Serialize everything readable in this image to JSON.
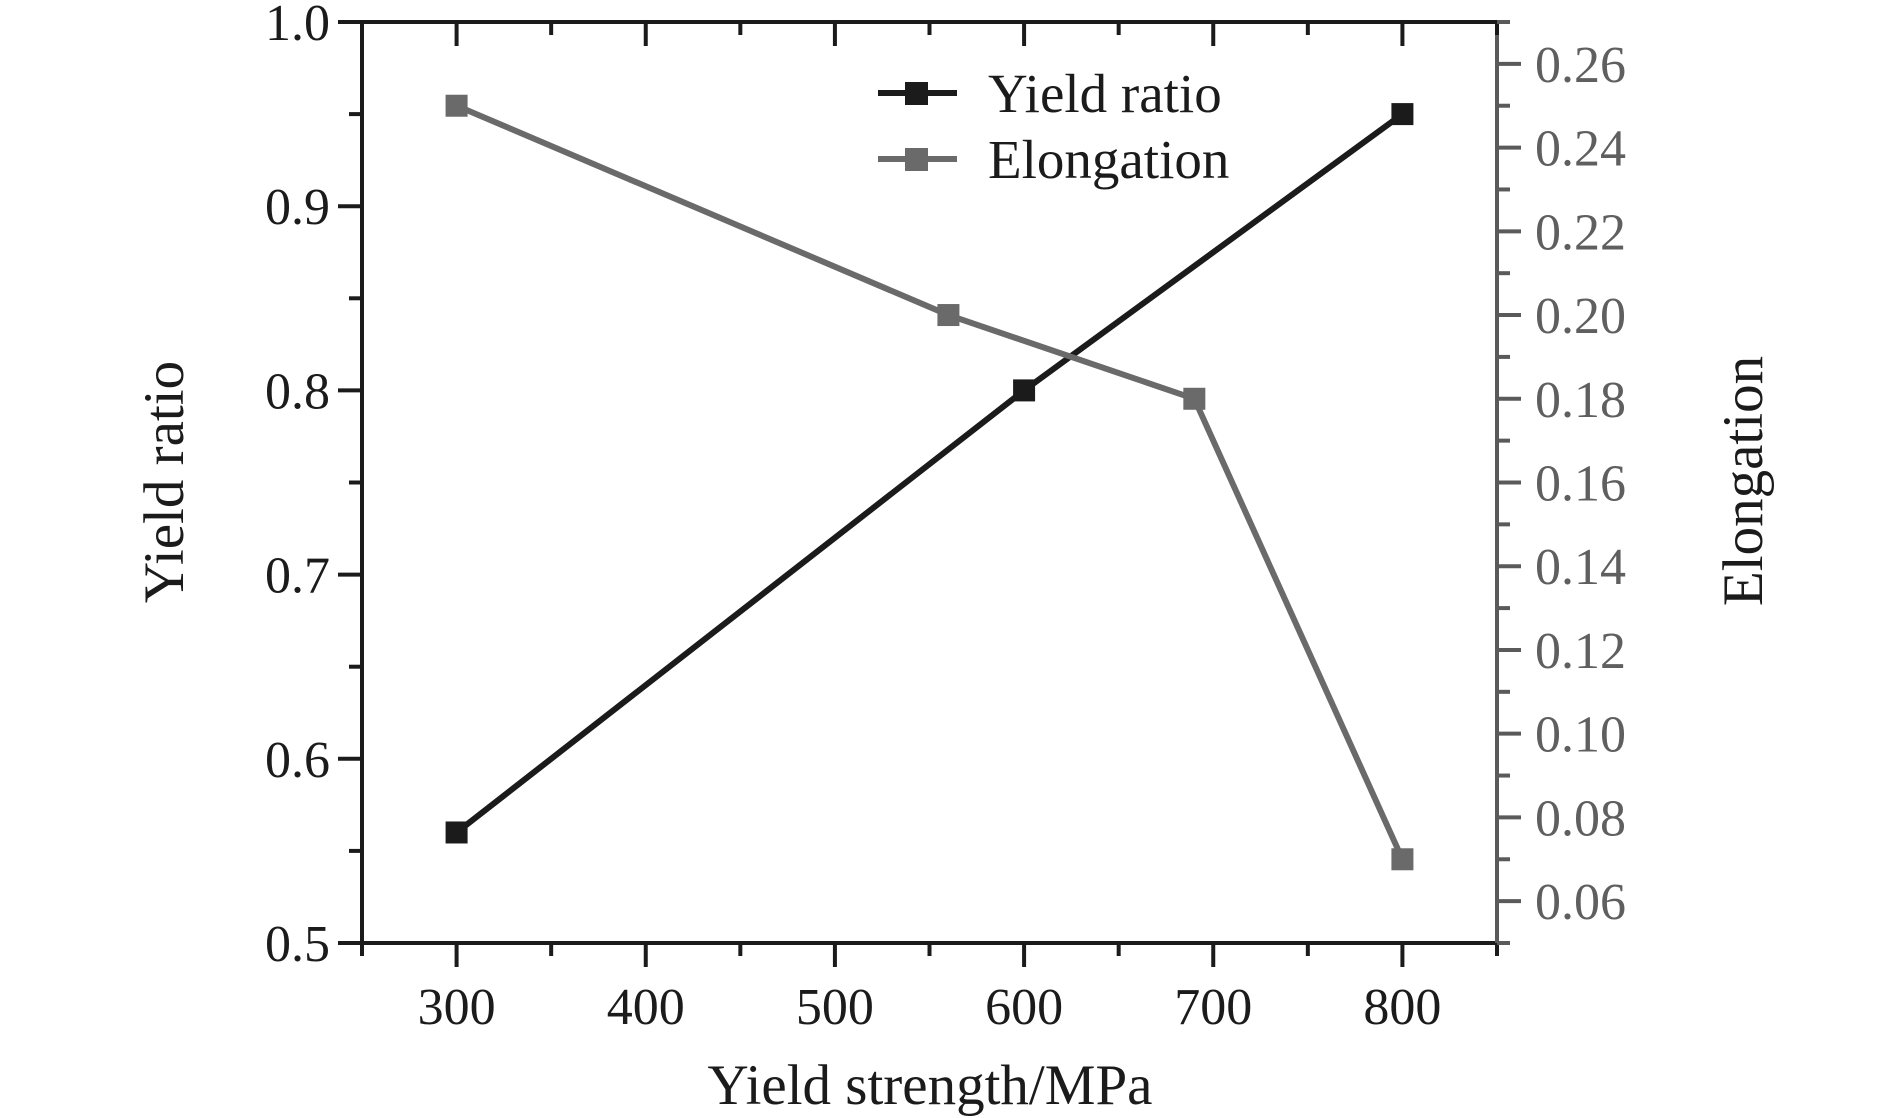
{
  "chart_data": {
    "type": "line",
    "title": "",
    "xlabel": "Yield strength/MPa",
    "ylabel_left": "Yield ratio",
    "ylabel_right": "Elongation",
    "grid": false,
    "legend_position": "top-center-inside",
    "xlim": [
      250,
      850
    ],
    "ylim_left": [
      0.5,
      1.0
    ],
    "ylim_right": [
      0.05,
      0.27
    ],
    "x_axis": {
      "major_tick_values": [
        300,
        400,
        500,
        600,
        700,
        800
      ],
      "major_tick_labels": [
        "300",
        "400",
        "500",
        "600",
        "700",
        "800"
      ],
      "minor_tick_values": [
        250,
        350,
        450,
        550,
        650,
        750,
        850
      ]
    },
    "y_axis_left": {
      "major_tick_values": [
        0.5,
        0.6,
        0.7,
        0.8,
        0.9,
        1.0
      ],
      "major_tick_labels": [
        "0.5",
        "0.6",
        "0.7",
        "0.8",
        "0.9",
        "1.0"
      ],
      "minor_tick_values": [
        0.55,
        0.65,
        0.75,
        0.85,
        0.95
      ]
    },
    "y_axis_right": {
      "major_tick_values": [
        0.06,
        0.08,
        0.1,
        0.12,
        0.14,
        0.16,
        0.18,
        0.2,
        0.22,
        0.24,
        0.26
      ],
      "major_tick_labels": [
        "0.06",
        "0.08",
        "0.10",
        "0.12",
        "0.14",
        "0.16",
        "0.18",
        "0.20",
        "0.22",
        "0.24",
        "0.26"
      ],
      "minor_tick_values": [
        0.05,
        0.07,
        0.09,
        0.11,
        0.13,
        0.15,
        0.17,
        0.19,
        0.21,
        0.23,
        0.25,
        0.27
      ]
    },
    "series": [
      {
        "name": "Yield ratio",
        "axis": "left",
        "color": "#1b1b1b",
        "marker": "square",
        "points": [
          [
            300,
            0.56
          ],
          [
            600,
            0.8
          ],
          [
            800,
            0.95
          ]
        ]
      },
      {
        "name": "Elongation",
        "axis": "right",
        "color": "#6a6a6a",
        "marker": "square",
        "points": [
          [
            300,
            0.25
          ],
          [
            560,
            0.2
          ],
          [
            690,
            0.18
          ],
          [
            800,
            0.07
          ]
        ]
      }
    ],
    "colors": {
      "axis_black": "#1b1b1b",
      "axis_right_gray": "#5a5a5a",
      "right_tick_label_gray": "#5f5f5f",
      "background": "#ffffff"
    }
  }
}
